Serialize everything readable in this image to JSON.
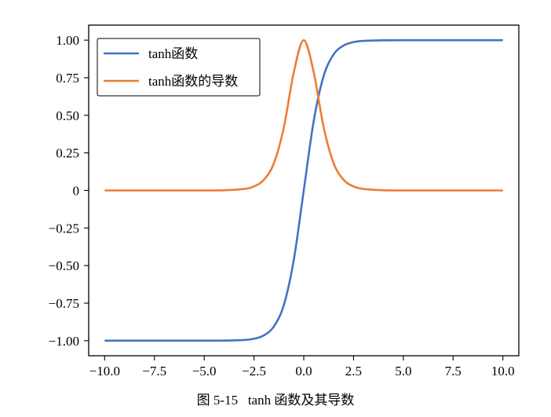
{
  "caption": "图 5-15   tanh 函数及其导数",
  "chart_data": {
    "type": "line",
    "title": "",
    "xlabel": "",
    "ylabel": "",
    "xlim": [
      -10.8,
      10.8
    ],
    "ylim": [
      -1.1,
      1.1
    ],
    "grid": false,
    "legend_position": "upper-left",
    "x_ticks": [
      -10.0,
      -7.5,
      -5.0,
      -2.5,
      0.0,
      2.5,
      5.0,
      7.5,
      10.0
    ],
    "x_tick_labels": [
      "−10.0",
      "−7.5",
      "−5.0",
      "−2.5",
      "0.0",
      "2.5",
      "5.0",
      "7.5",
      "10.0"
    ],
    "y_ticks": [
      1.0,
      0.75,
      0.5,
      0.25,
      0.0,
      -0.25,
      -0.5,
      -0.75,
      -1.0
    ],
    "y_tick_labels": [
      "1.00",
      "0.75",
      "0.50",
      "0.25",
      "0",
      "−0.25",
      "−0.50",
      "−0.75",
      "−1.00"
    ],
    "x": [
      -10,
      -9,
      -8,
      -7,
      -6,
      -5,
      -4,
      -3,
      -2.5,
      -2,
      -1.5,
      -1,
      -0.5,
      0,
      0.5,
      1,
      1.5,
      2,
      2.5,
      3,
      4,
      5,
      6,
      7,
      8,
      9,
      10
    ],
    "series": [
      {
        "name": "tanh函数",
        "color": "#4472c4",
        "values": [
          -1.0,
          -1.0,
          -1.0,
          -1.0,
          -1.0,
          -1.0,
          -0.999,
          -0.995,
          -0.987,
          -0.964,
          -0.905,
          -0.762,
          -0.462,
          0.0,
          0.462,
          0.762,
          0.905,
          0.964,
          0.987,
          0.995,
          0.999,
          1.0,
          1.0,
          1.0,
          1.0,
          1.0,
          1.0
        ]
      },
      {
        "name": "tanh函数的导数",
        "color": "#ed7d31",
        "values": [
          0.0,
          0.0,
          0.0,
          0.0,
          0.0,
          0.0,
          0.001,
          0.01,
          0.027,
          0.071,
          0.181,
          0.42,
          0.786,
          1.0,
          0.786,
          0.42,
          0.181,
          0.071,
          0.027,
          0.01,
          0.001,
          0.0,
          0.0,
          0.0,
          0.0,
          0.0,
          0.0
        ]
      }
    ]
  }
}
